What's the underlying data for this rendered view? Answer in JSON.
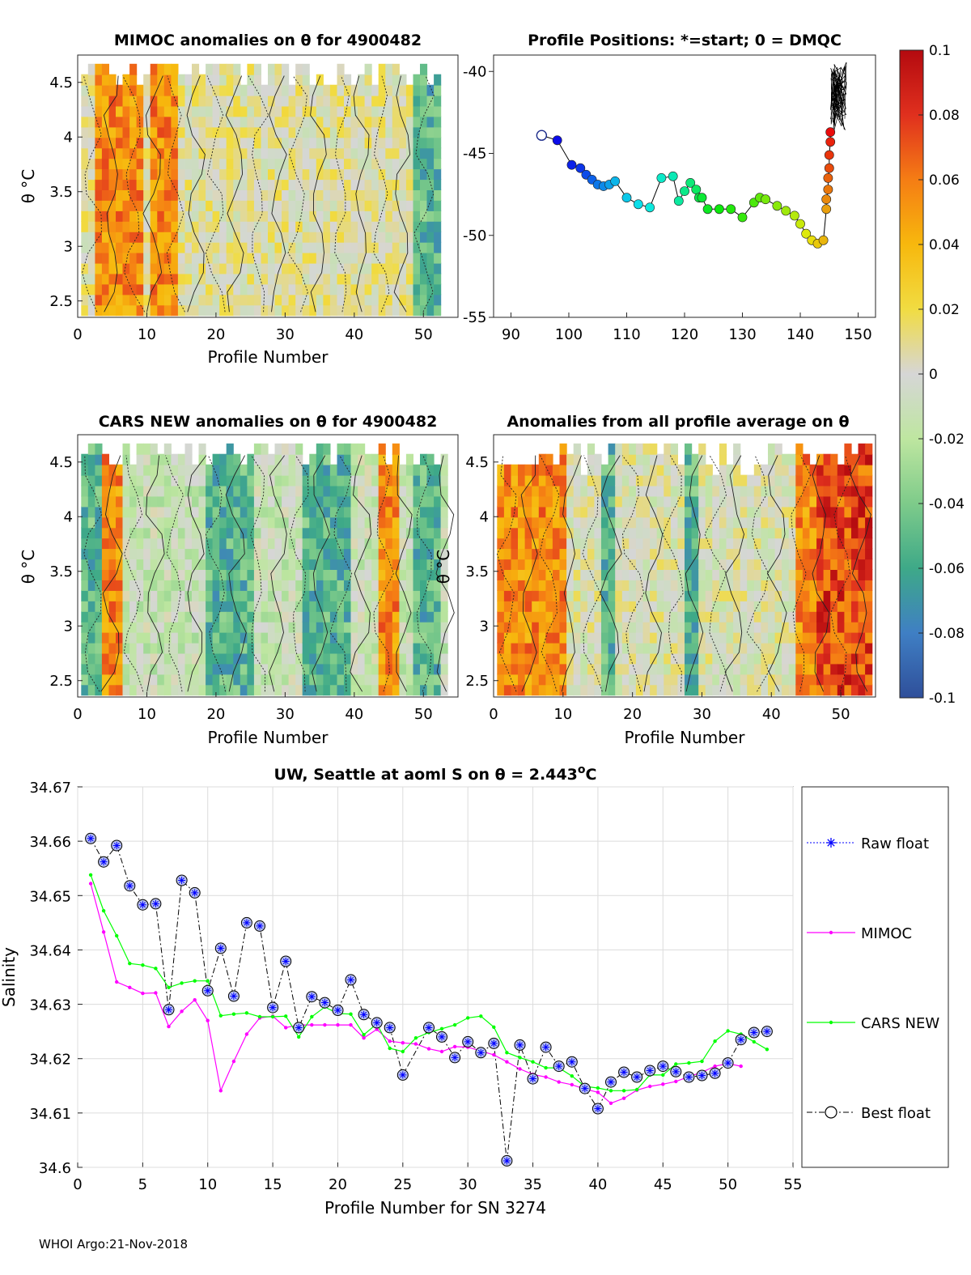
{
  "chart_data": [
    {
      "id": "mimoc",
      "type": "heatmap",
      "title": "MIMOC anomalies on θ  for 4900482",
      "xlabel": "Profile Number",
      "ylabel": "θ °C",
      "xlim": [
        0,
        55
      ],
      "ylim": [
        2.35,
        4.75
      ],
      "xticks": [
        "0",
        "10",
        "20",
        "30",
        "40",
        "50"
      ],
      "yticks": [
        "2.5",
        "3",
        "3.5",
        "4",
        "4.5"
      ],
      "warm_bands": [
        [
          3,
          9
        ],
        [
          11,
          14
        ]
      ],
      "cool_bands": [
        [
          49,
          52
        ]
      ]
    },
    {
      "id": "positions",
      "type": "scatter",
      "title": "Profile Positions: *=start; 0 = DMQC",
      "xlim": [
        87,
        153
      ],
      "ylim": [
        -55,
        -39
      ],
      "xticks": [
        "90",
        "100",
        "110",
        "120",
        "130",
        "140",
        "150"
      ],
      "yticks": [
        "-40",
        "-45",
        "-50",
        "-55"
      ],
      "start": [
        95.3,
        -43.9
      ],
      "lon": [
        98,
        100.5,
        102,
        103,
        104,
        105,
        106,
        107,
        108,
        110,
        112,
        114,
        116,
        118,
        119,
        120,
        121,
        122,
        122.5,
        123,
        124,
        126,
        128,
        130,
        132,
        133,
        134,
        136,
        137.5,
        139,
        140,
        141,
        142,
        143,
        144,
        144.5,
        144.5,
        144.8,
        144.8,
        145,
        145,
        145.2,
        145.2
      ],
      "lat": [
        -44.2,
        -45.7,
        -45.9,
        -46.3,
        -46.6,
        -46.9,
        -47,
        -46.9,
        -46.7,
        -47.7,
        -48.1,
        -48.3,
        -46.5,
        -46.4,
        -47.9,
        -47.3,
        -46.8,
        -47.2,
        -47.7,
        -47.7,
        -48.4,
        -48.4,
        -48.4,
        -48.9,
        -48,
        -47.7,
        -47.8,
        -48.2,
        -48.5,
        -48.8,
        -49.3,
        -49.9,
        -50.3,
        -50.5,
        -50.3,
        -48.4,
        -47.8,
        -47.2,
        -46.5,
        -45.9,
        -45.1,
        -44.3,
        -43.7
      ]
    },
    {
      "id": "colorbar",
      "type": "heatmap",
      "clim": [
        -0.1,
        0.1
      ],
      "ticks": [
        "0.1",
        "0.08",
        "0.06",
        "0.04",
        "0.02",
        "0",
        "-0.02",
        "-0.04",
        "-0.06",
        "-0.08",
        "-0.1"
      ]
    },
    {
      "id": "cars",
      "type": "heatmap",
      "title": "CARS NEW anomalies on θ for 4900482",
      "xlabel": "Profile Number",
      "ylabel": "θ °C",
      "xlim": [
        0,
        55
      ],
      "ylim": [
        2.35,
        4.75
      ],
      "xticks": [
        "0",
        "10",
        "20",
        "30",
        "40",
        "50"
      ],
      "yticks": [
        "2.5",
        "3",
        "3.5",
        "4",
        "4.5"
      ],
      "warm_bands": [
        [
          4,
          6
        ],
        [
          44,
          46
        ]
      ],
      "cool_bands": [
        [
          1,
          3
        ],
        [
          19,
          25
        ],
        [
          33,
          39
        ],
        [
          49,
          52
        ]
      ]
    },
    {
      "id": "allprof",
      "type": "heatmap",
      "title": "Anomalies from all profile average on θ",
      "xlabel": "Profile Number",
      "ylabel": "θ °C",
      "xlim": [
        0,
        55
      ],
      "ylim": [
        2.35,
        4.75
      ],
      "xticks": [
        "0",
        "10",
        "20",
        "30",
        "40",
        "50"
      ],
      "yticks": [
        "2.5",
        "3",
        "3.5",
        "4",
        "4.5"
      ],
      "warm_bands": [
        [
          1,
          10
        ],
        [
          44,
          54
        ]
      ],
      "cool_bands": [
        [
          16,
          17
        ],
        [
          28,
          29
        ]
      ]
    },
    {
      "id": "salinity",
      "type": "line",
      "title": "UW, Seattle at aoml S on θ = 2.443",
      "title_sup": "o",
      "title_unit": "C",
      "xlabel": "Profile Number for SN 3274",
      "ylabel": "Salinity",
      "xlim": [
        0,
        55
      ],
      "ylim": [
        34.6,
        34.67
      ],
      "xticks": [
        "0",
        "5",
        "10",
        "15",
        "20",
        "25",
        "30",
        "35",
        "40",
        "45",
        "50",
        "55"
      ],
      "yticks": [
        "34.6",
        "34.61",
        "34.62",
        "34.63",
        "34.64",
        "34.65",
        "34.66",
        "34.67"
      ],
      "series": [
        {
          "name": "Raw float",
          "color": "#0000ff",
          "x": [
            1,
            2,
            3,
            4,
            5,
            6,
            7,
            8,
            9,
            10,
            11,
            12,
            13,
            14,
            15,
            16,
            17,
            18,
            19,
            20,
            21,
            22,
            23,
            24,
            25,
            27,
            28,
            29,
            30,
            31,
            32,
            33,
            34,
            35,
            36,
            37,
            38,
            39,
            40,
            41,
            42,
            43,
            44,
            45,
            46,
            47,
            48,
            49,
            50,
            51,
            52,
            53
          ],
          "values": [
            34.6605,
            34.6562,
            34.6592,
            34.6518,
            34.6483,
            34.6485,
            34.629,
            34.6528,
            34.6505,
            34.6325,
            34.6403,
            34.6315,
            34.645,
            34.6444,
            34.6294,
            34.6379,
            34.6257,
            34.6314,
            34.6303,
            34.6289,
            34.6345,
            34.6281,
            34.6266,
            34.6257,
            34.617,
            34.6257,
            34.624,
            34.6202,
            34.6231,
            34.6211,
            34.6228,
            34.6012,
            34.6225,
            34.6163,
            34.6221,
            34.6186,
            34.6194,
            34.6145,
            34.6108,
            34.6157,
            34.6175,
            34.6166,
            34.6178,
            34.6186,
            34.6176,
            34.6166,
            34.6169,
            34.6173,
            34.6192,
            34.6235,
            34.6248,
            34.625
          ]
        },
        {
          "name": "MIMOC",
          "color": "#ff00ff",
          "x": [
            1,
            2,
            3,
            4,
            5,
            6,
            7,
            8,
            9,
            10,
            11,
            12,
            13,
            14,
            15,
            16,
            17,
            18,
            19,
            20,
            21,
            22,
            23,
            24,
            25,
            26,
            27,
            28,
            29,
            30,
            31,
            32,
            33,
            34,
            35,
            36,
            37,
            38,
            39,
            40,
            41,
            42,
            43,
            44,
            45,
            46,
            47,
            48,
            49,
            50,
            51
          ],
          "values": [
            34.6522,
            34.6433,
            34.6341,
            34.6331,
            34.632,
            34.6321,
            34.6259,
            34.6287,
            34.6308,
            34.627,
            34.6141,
            34.6195,
            34.6245,
            34.6275,
            34.6278,
            34.6257,
            34.6262,
            34.6262,
            34.6262,
            34.6262,
            34.6262,
            34.6238,
            34.6254,
            34.6232,
            34.6229,
            34.6227,
            34.6218,
            34.6213,
            34.6222,
            34.6221,
            34.6214,
            34.6207,
            34.6194,
            34.6181,
            34.6171,
            34.6166,
            34.6157,
            34.6152,
            34.6144,
            34.6138,
            34.6118,
            34.6127,
            34.6142,
            34.6149,
            34.6153,
            34.6158,
            34.6167,
            34.6175,
            34.6186,
            34.6191,
            34.6186
          ]
        },
        {
          "name": "CARS NEW",
          "color": "#00ff00",
          "x": [
            1,
            2,
            3,
            4,
            5,
            6,
            7,
            8,
            9,
            10,
            11,
            12,
            13,
            14,
            15,
            16,
            17,
            18,
            19,
            20,
            21,
            22,
            23,
            24,
            25,
            26,
            27,
            28,
            29,
            30,
            31,
            32,
            33,
            34,
            35,
            36,
            37,
            38,
            39,
            40,
            41,
            42,
            43,
            44,
            45,
            46,
            47,
            48,
            49,
            50,
            51,
            52,
            53
          ],
          "values": [
            34.6538,
            34.6472,
            34.6426,
            34.6375,
            34.6372,
            34.6366,
            34.6331,
            34.6339,
            34.6343,
            34.6343,
            34.6279,
            34.6282,
            34.6284,
            34.6277,
            34.6277,
            34.6278,
            34.624,
            34.6277,
            34.6295,
            34.6283,
            34.6282,
            34.6244,
            34.6264,
            34.6219,
            34.6213,
            34.6238,
            34.6248,
            34.6255,
            34.6262,
            34.6275,
            34.6278,
            34.6258,
            34.6211,
            34.6202,
            34.6194,
            34.6183,
            34.6183,
            34.6168,
            34.6149,
            34.6146,
            34.6141,
            34.6141,
            34.6143,
            34.617,
            34.617,
            34.619,
            34.6192,
            34.6195,
            34.6232,
            34.6251,
            34.6245,
            34.6231,
            34.6217
          ]
        },
        {
          "name": "Best float",
          "color": "#000000"
        }
      ]
    }
  ],
  "footer": {
    "stamp": "WHOI Argo:21-Nov-2018"
  }
}
